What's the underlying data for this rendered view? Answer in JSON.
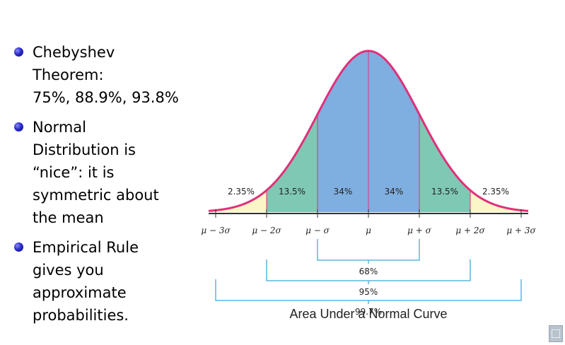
{
  "bullets": [
    {
      "lines": [
        "Chebyshev",
        "Theorem:",
        "75%, 88.9%, 93.8%"
      ]
    },
    {
      "lines": [
        "Normal",
        "Distribution is",
        "“nice”: it is",
        "symmetric about",
        "the mean"
      ]
    },
    {
      "lines": [
        "Empirical Rule",
        "gives you",
        "approximate",
        "probabilities."
      ]
    }
  ],
  "figure": {
    "caption": "Area Under a Normal Curve",
    "region_labels": [
      "2.35%",
      "13.5%",
      "34%",
      "34%",
      "13.5%",
      "2.35%"
    ],
    "axis_labels": [
      "μ − 3σ",
      "μ − 2σ",
      "μ − σ",
      "μ",
      "μ + σ",
      "μ + 2σ",
      "μ + 3σ"
    ],
    "bracket_labels": [
      "68%",
      "95%",
      "99.7%"
    ],
    "colors": {
      "tail": "#fbf6c8",
      "second": "#7fc8b4",
      "center": "#7faee0",
      "curve": "#e0307a",
      "bracket": "#5bb5e0"
    }
  },
  "corner_icon": "slide-nav-icon"
}
